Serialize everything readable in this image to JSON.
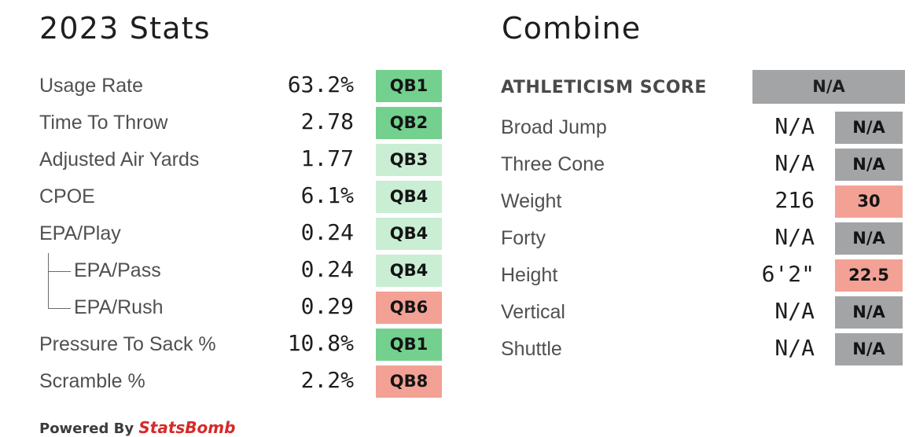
{
  "stats": {
    "title": "2023 Stats",
    "rows": [
      {
        "label": "Usage Rate",
        "value": "63.2%",
        "rank": "QB1",
        "color": "#74d08e"
      },
      {
        "label": "Time To Throw",
        "value": "2.78",
        "rank": "QB2",
        "color": "#74d08e"
      },
      {
        "label": "Adjusted Air Yards",
        "value": "1.77",
        "rank": "QB3",
        "color": "#c9eed3"
      },
      {
        "label": "CPOE",
        "value": "6.1%",
        "rank": "QB4",
        "color": "#c9eed3"
      },
      {
        "label": "EPA/Play",
        "value": "0.24",
        "rank": "QB4",
        "color": "#c9eed3"
      },
      {
        "label": "EPA/Pass",
        "value": "0.24",
        "rank": "QB4",
        "color": "#c9eed3"
      },
      {
        "label": "EPA/Rush",
        "value": "0.29",
        "rank": "QB6",
        "color": "#f3a195"
      },
      {
        "label": "Pressure To Sack %",
        "value": "10.8%",
        "rank": "QB1",
        "color": "#74d08e"
      },
      {
        "label": "Scramble %",
        "value": "2.2%",
        "rank": "QB8",
        "color": "#f3a195"
      }
    ]
  },
  "combine": {
    "title": "Combine",
    "athleticism_label": "ATHLETICISM SCORE",
    "athleticism_score": "N/A",
    "rows": [
      {
        "label": "Broad Jump",
        "value": "N/A",
        "score": "N/A",
        "color": "#a3a4a6"
      },
      {
        "label": "Three Cone",
        "value": "N/A",
        "score": "N/A",
        "color": "#a3a4a6"
      },
      {
        "label": "Weight",
        "value": "216",
        "score": "30",
        "color": "#f3a195"
      },
      {
        "label": "Forty",
        "value": "N/A",
        "score": "N/A",
        "color": "#a3a4a6"
      },
      {
        "label": "Height",
        "value": "6'2\"",
        "score": "22.5",
        "color": "#f3a195"
      },
      {
        "label": "Vertical",
        "value": "N/A",
        "score": "N/A",
        "color": "#a3a4a6"
      },
      {
        "label": "Shuttle",
        "value": "N/A",
        "score": "N/A",
        "color": "#a3a4a6"
      }
    ]
  },
  "footer": {
    "powered_by": "Powered By",
    "brand": "StatsBomb"
  }
}
